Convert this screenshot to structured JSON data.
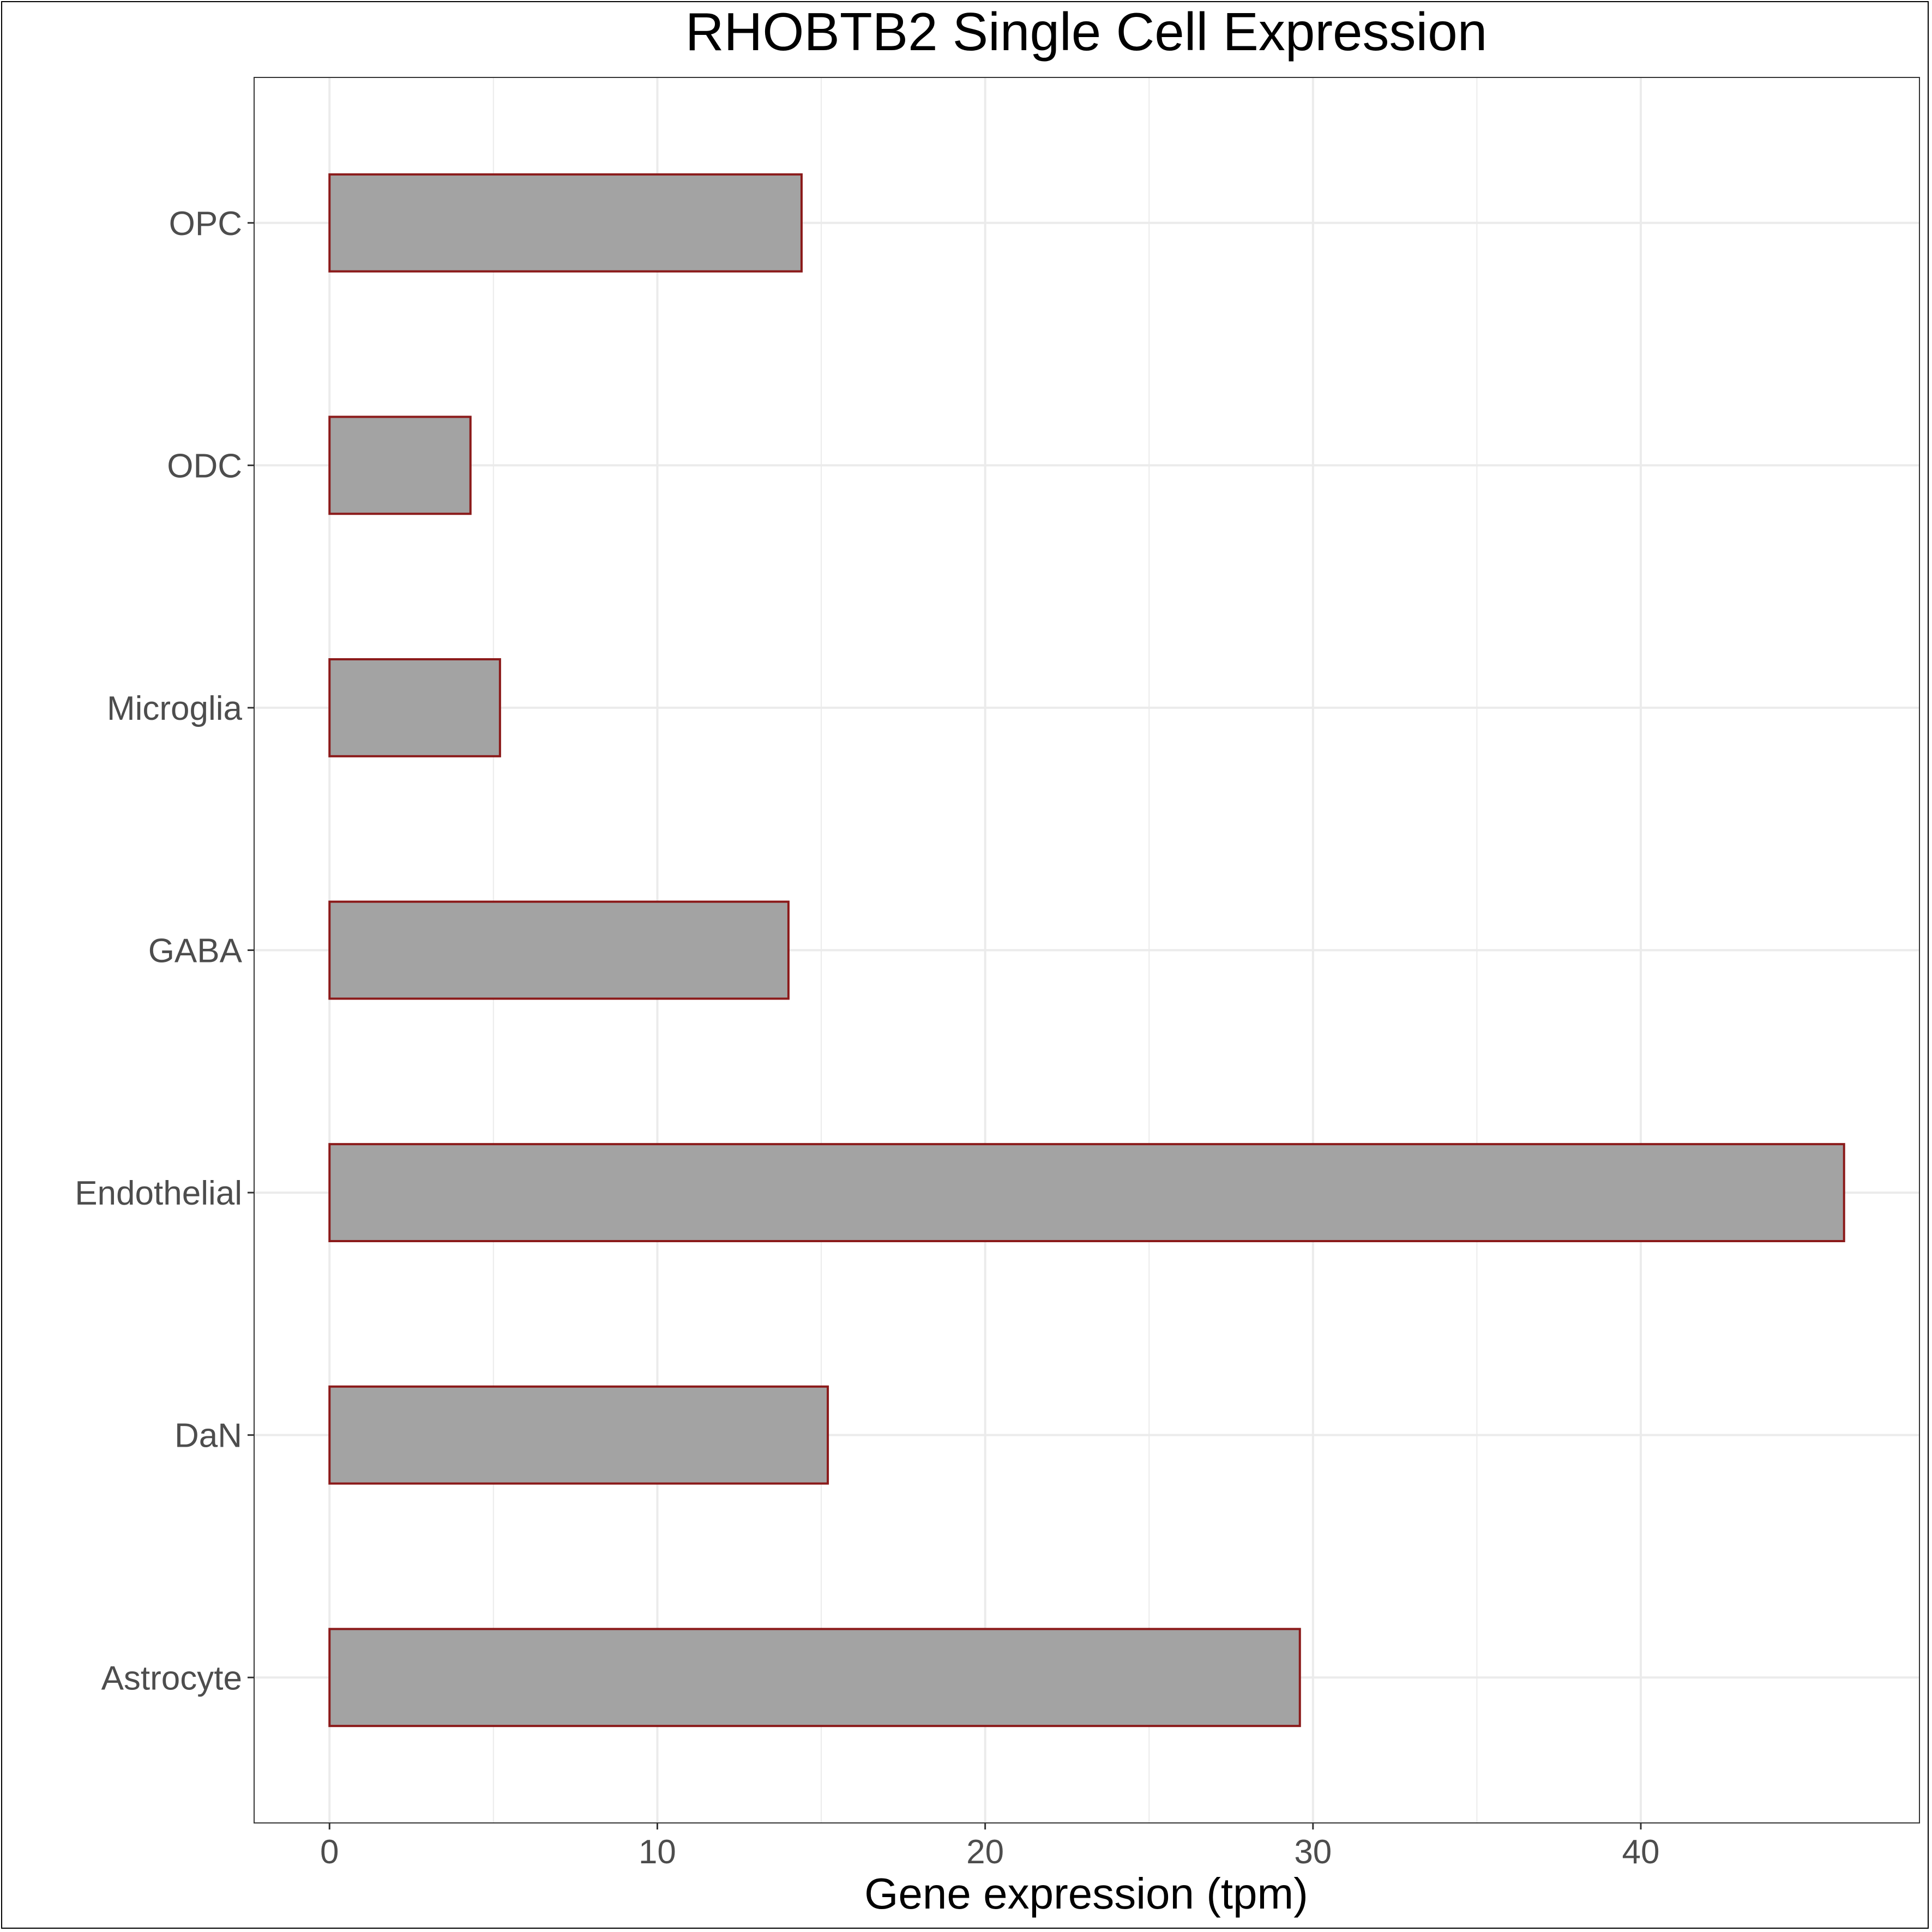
{
  "chart_data": {
    "type": "bar",
    "orientation": "horizontal",
    "title": "RHOBTB2 Single Cell Expression",
    "xlabel": "Gene expression (tpm)",
    "ylabel": "",
    "categories": [
      "Astrocyte",
      "DaN",
      "Endothelial",
      "GABA",
      "Microglia",
      "ODC",
      "OPC"
    ],
    "values": [
      29.6,
      15.2,
      46.2,
      14.0,
      5.2,
      4.3,
      14.4
    ],
    "xlim": [
      -2.3,
      48.5
    ],
    "xticks": [
      0,
      10,
      20,
      30,
      40
    ],
    "xtick_labels": [
      "0",
      "10",
      "20",
      "30",
      "40"
    ],
    "grid": true,
    "legend": "none",
    "colors": {
      "bar_fill": "#a3a3a3",
      "bar_stroke": "#8b1a1a",
      "grid": "#ebebeb",
      "panel_border": "#333333"
    }
  }
}
